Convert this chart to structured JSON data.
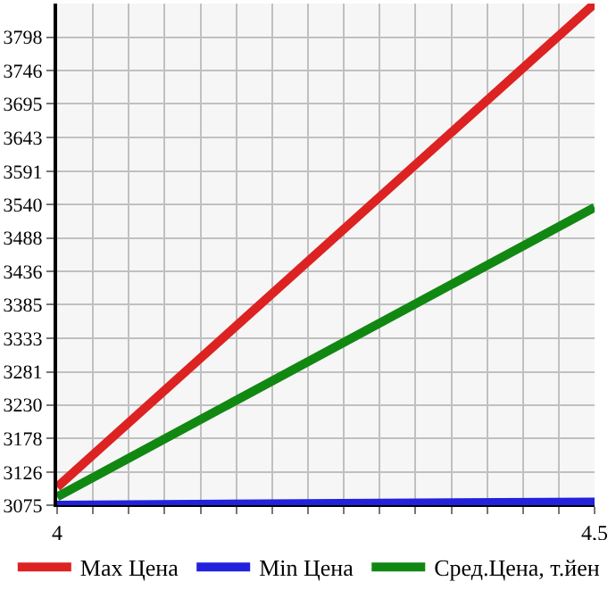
{
  "chart_data": {
    "type": "line",
    "x": [
      4,
      4.5
    ],
    "series": [
      {
        "name": "Max Цена",
        "color": "#dd2222",
        "values": [
          3103,
          3850
        ]
      },
      {
        "name": "Min Цена",
        "color": "#2222dd",
        "values": [
          3075,
          3080
        ]
      },
      {
        "name": "Сред.Цена, т.йен",
        "color": "#118811",
        "values": [
          3088,
          3535
        ]
      }
    ],
    "xlim": [
      4,
      4.5
    ],
    "xticks": [
      4,
      {
        "value": 4.0333,
        "label": null
      },
      {
        "value": 4.0667,
        "label": null
      },
      {
        "value": 4.1,
        "label": null
      },
      {
        "value": 4.1333,
        "label": null
      },
      {
        "value": 4.1667,
        "label": null
      },
      {
        "value": 4.2,
        "label": null
      },
      {
        "value": 4.2333,
        "label": null
      },
      {
        "value": 4.2667,
        "label": null
      },
      {
        "value": 4.3,
        "label": null
      },
      {
        "value": 4.3333,
        "label": null
      },
      {
        "value": 4.3667,
        "label": null
      },
      {
        "value": 4.4,
        "label": null
      },
      {
        "value": 4.4333,
        "label": null
      },
      {
        "value": 4.4667,
        "label": null
      },
      {
        "value": 4.5,
        "label": "4,5"
      }
    ],
    "ylim": [
      3075,
      3850
    ],
    "yticks": [
      3075,
      3126,
      3178,
      3230,
      3281,
      3333,
      3385,
      3436,
      3488,
      3540,
      3591,
      3643,
      3695,
      3746,
      3798
    ],
    "grid": true,
    "legend": "bottom",
    "marker": "none",
    "line_style": "solid"
  }
}
